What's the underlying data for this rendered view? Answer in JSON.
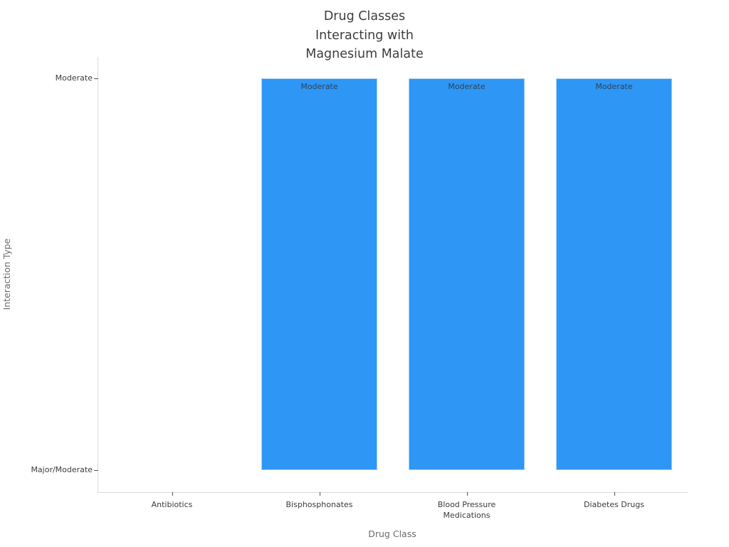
{
  "chart_data": {
    "type": "bar",
    "title": "Drug Classes\nInteracting with\nMagnesium Malate",
    "xlabel": "Drug Class",
    "ylabel": "Interaction Type",
    "categories": [
      "Antibiotics",
      "Bisphosphonates",
      "Blood Pressure Medications",
      "Diabetes Drugs"
    ],
    "values": [
      "Major/Moderate",
      "Moderate",
      "Moderate",
      "Moderate"
    ],
    "values_numeric": [
      0,
      1,
      1,
      1
    ],
    "bar_labels": [
      "",
      "Moderate",
      "Moderate",
      "Moderate"
    ],
    "y_ticks": [
      {
        "label": "Major/Moderate",
        "level": 0
      },
      {
        "label": "Moderate",
        "level": 1
      }
    ],
    "ylim": [
      0,
      1
    ],
    "grid": false,
    "legend": false,
    "colors": {
      "bar": "#2E96F5",
      "bar_edge": "rgba(255,255,255,0.55)",
      "bar_label_text": "#2f4358",
      "axis_line": "#d9d9d9",
      "tick_mark": "#555555",
      "tick_label_text": "#3b3b3b",
      "axis_title_text": "#6b6b6b",
      "title_text": "#3d3d3d",
      "background": "#ffffff"
    }
  }
}
